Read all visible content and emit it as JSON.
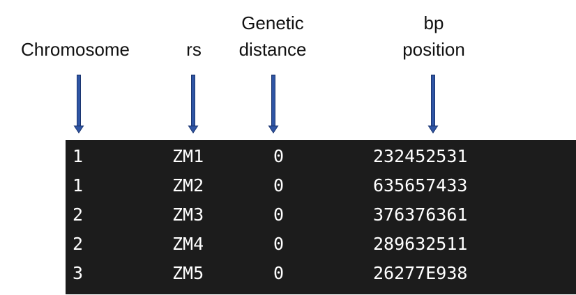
{
  "headers": {
    "chromosome": "Chromosome",
    "rs": "rs",
    "genetic_distance": "Genetic\ndistance",
    "bp_position": "bp\nposition"
  },
  "arrow_color": "#2f55a4",
  "arrow_outline": "#1b3570",
  "terminal_background": "#1c1c1c",
  "terminal_text_color": "#ffffff",
  "rows": [
    {
      "chromosome": "1",
      "rs": "ZM1",
      "distance": "0",
      "bp": "232452531"
    },
    {
      "chromosome": "1",
      "rs": "ZM2",
      "distance": "0",
      "bp": "635657433"
    },
    {
      "chromosome": "2",
      "rs": "ZM3",
      "distance": "0",
      "bp": "376376361"
    },
    {
      "chromosome": "2",
      "rs": "ZM4",
      "distance": "0",
      "bp": "289632511"
    },
    {
      "chromosome": "3",
      "rs": "ZM5",
      "distance": "0",
      "bp": "26277E938"
    }
  ]
}
